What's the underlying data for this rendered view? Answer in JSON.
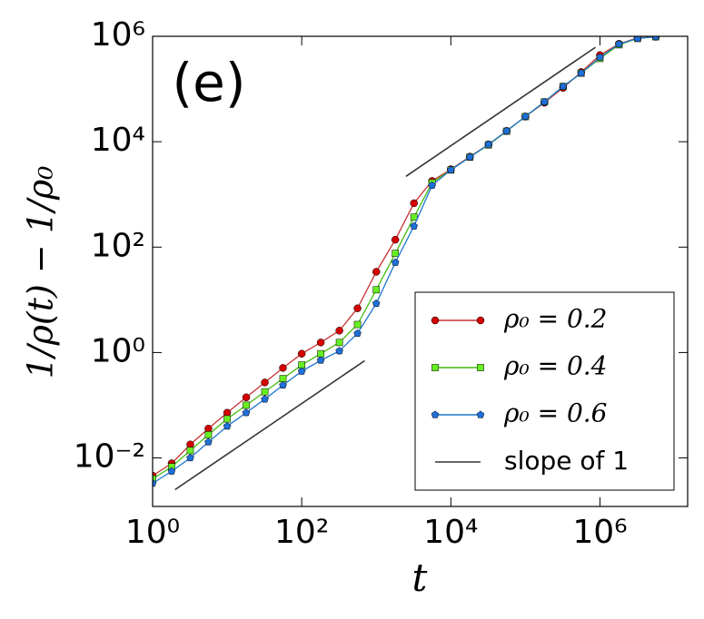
{
  "chart_data": {
    "type": "line",
    "annotation": "(e)",
    "x_label": "t",
    "y_label": "1/ρ(t) − 1/ρ₀",
    "xlog": true,
    "ylog": true,
    "legend": "lower right",
    "xlim": [
      1,
      15000000
    ],
    "ylim": [
      0.0012,
      1000000
    ],
    "xticks": [
      {
        "value": 1,
        "label": "10⁰"
      },
      {
        "value": 100,
        "label": "10²"
      },
      {
        "value": 10000,
        "label": "10⁴"
      },
      {
        "value": 1000000,
        "label": "10⁶"
      }
    ],
    "yticks": [
      {
        "value": 0.01,
        "label": "10⁻²"
      },
      {
        "value": 1,
        "label": "10⁰"
      },
      {
        "value": 100,
        "label": "10²"
      },
      {
        "value": 10000,
        "label": "10⁴"
      },
      {
        "value": 1000000,
        "label": "10⁶"
      }
    ],
    "series": [
      {
        "name": "ρ₀ = 0.2",
        "color": "#d40000",
        "line_color": "#c83232",
        "marker": "circle",
        "x": [
          1,
          1.8,
          3.2,
          5.6,
          10,
          18,
          32,
          56,
          100,
          180,
          320,
          560,
          1000,
          1800,
          3200,
          5600,
          10000,
          18000,
          32000,
          56000,
          100000,
          180000,
          320000,
          560000,
          1000000,
          1800000,
          3200000,
          5600000
        ],
        "values": [
          0.0046,
          0.0079,
          0.018,
          0.036,
          0.072,
          0.141,
          0.27,
          0.51,
          0.95,
          1.55,
          2.6,
          6.9,
          34,
          138,
          680,
          1800,
          3000,
          5200,
          8900,
          16000,
          30000,
          55000,
          105000,
          210000,
          440000,
          720000,
          930000,
          980000
        ]
      },
      {
        "name": "ρ₀ = 0.4",
        "color": "#66ee22",
        "line_color": "#44bb11",
        "marker": "square",
        "x": [
          1,
          1.8,
          3.2,
          5.6,
          10,
          18,
          32,
          56,
          100,
          180,
          320,
          560,
          1000,
          1800,
          3200,
          5600,
          10000,
          18000,
          32000,
          56000,
          100000,
          180000,
          320000,
          560000,
          1000000,
          1800000,
          3200000,
          5600000
        ],
        "values": [
          0.004,
          0.0068,
          0.0138,
          0.0275,
          0.055,
          0.1,
          0.18,
          0.32,
          0.58,
          0.95,
          1.55,
          3.4,
          15.5,
          76,
          370,
          1660,
          2900,
          5100,
          8700,
          15800,
          30000,
          57000,
          112000,
          200000,
          380000,
          690000,
          910000,
          980000
        ]
      },
      {
        "name": "ρ₀ = 0.6",
        "color": "#1f6fd8",
        "line_color": "#2277cc",
        "marker": "pentagon",
        "x": [
          1,
          1.8,
          3.2,
          5.6,
          10,
          18,
          32,
          56,
          100,
          180,
          320,
          560,
          1000,
          1800,
          3200,
          5600,
          10000,
          18000,
          32000,
          56000,
          100000,
          180000,
          320000,
          560000,
          1000000,
          1800000,
          3200000,
          5600000
        ],
        "values": [
          0.0033,
          0.0056,
          0.01,
          0.02,
          0.04,
          0.072,
          0.13,
          0.24,
          0.44,
          0.71,
          1.07,
          2.3,
          8.5,
          51,
          250,
          1480,
          2900,
          5100,
          8900,
          16000,
          30000,
          57000,
          112000,
          200000,
          400000,
          710000,
          910000,
          980000
        ]
      },
      {
        "name": "slope of 1",
        "color": "#333333",
        "marker": "none",
        "x": [
          2,
          700,
          1000,
          2500,
          870000
        ],
        "values": [
          0.0025,
          0.7,
          null,
          2200,
          620000
        ]
      }
    ]
  }
}
